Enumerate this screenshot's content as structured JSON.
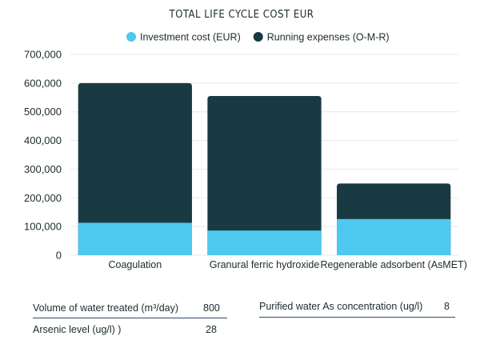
{
  "chart_data": {
    "type": "bar",
    "stacked": true,
    "title": "TOTAL LIFE CYCLE COST EUR",
    "categories": [
      "Coagulation",
      "Granural ferric hydroxide",
      "Regenerable adsorbent (AsMET)"
    ],
    "series": [
      {
        "name": "Investment cost (EUR)",
        "color": "#4ec8ee",
        "values": [
          113000,
          86000,
          126000
        ]
      },
      {
        "name": "Running expenses (O-M-R)",
        "color": "#193a42",
        "values": [
          487000,
          469000,
          124000
        ]
      }
    ],
    "ylim": [
      0,
      700000
    ],
    "yticks": [
      "0",
      "100,000",
      "200,000",
      "300,000",
      "400,000",
      "500,000",
      "600,000",
      "700,000"
    ],
    "grid": true,
    "legend": "top"
  },
  "info": {
    "volume_label": "Volume of water treated (m³/day)",
    "volume_value": "800",
    "arsenic_label": "Arsenic level (ug/l) )",
    "arsenic_value": "28",
    "purified_label": "Purified water As concentration (ug/l)",
    "purified_value": "8"
  }
}
